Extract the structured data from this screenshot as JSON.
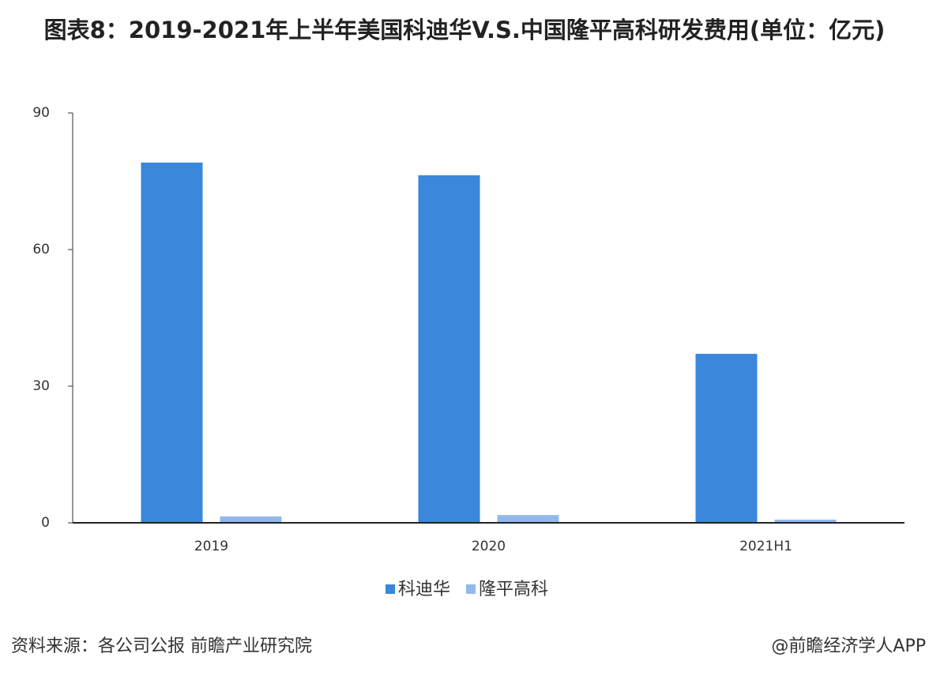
{
  "chart_data": {
    "type": "bar",
    "title": "图表8：2019-2021年上半年美国科迪华V.S.中国隆平高科研发费用(单位：亿元)",
    "categories": [
      "2019",
      "2020",
      "2021H1"
    ],
    "series": [
      {
        "name": "科迪华",
        "color": "#3a87dc",
        "values": [
          79.1,
          76.3,
          37.1
        ]
      },
      {
        "name": "隆平高科",
        "color": "#94b8ea",
        "values": [
          1.4,
          1.7,
          0.7
        ]
      }
    ],
    "ylim": [
      0,
      90
    ],
    "yticks": [
      0,
      30,
      60,
      90
    ],
    "grid": false,
    "legend": "bottom"
  },
  "footer": {
    "source": "资料来源：各公司公报 前瞻产业研究院",
    "credit": "@前瞻经济学人APP"
  }
}
